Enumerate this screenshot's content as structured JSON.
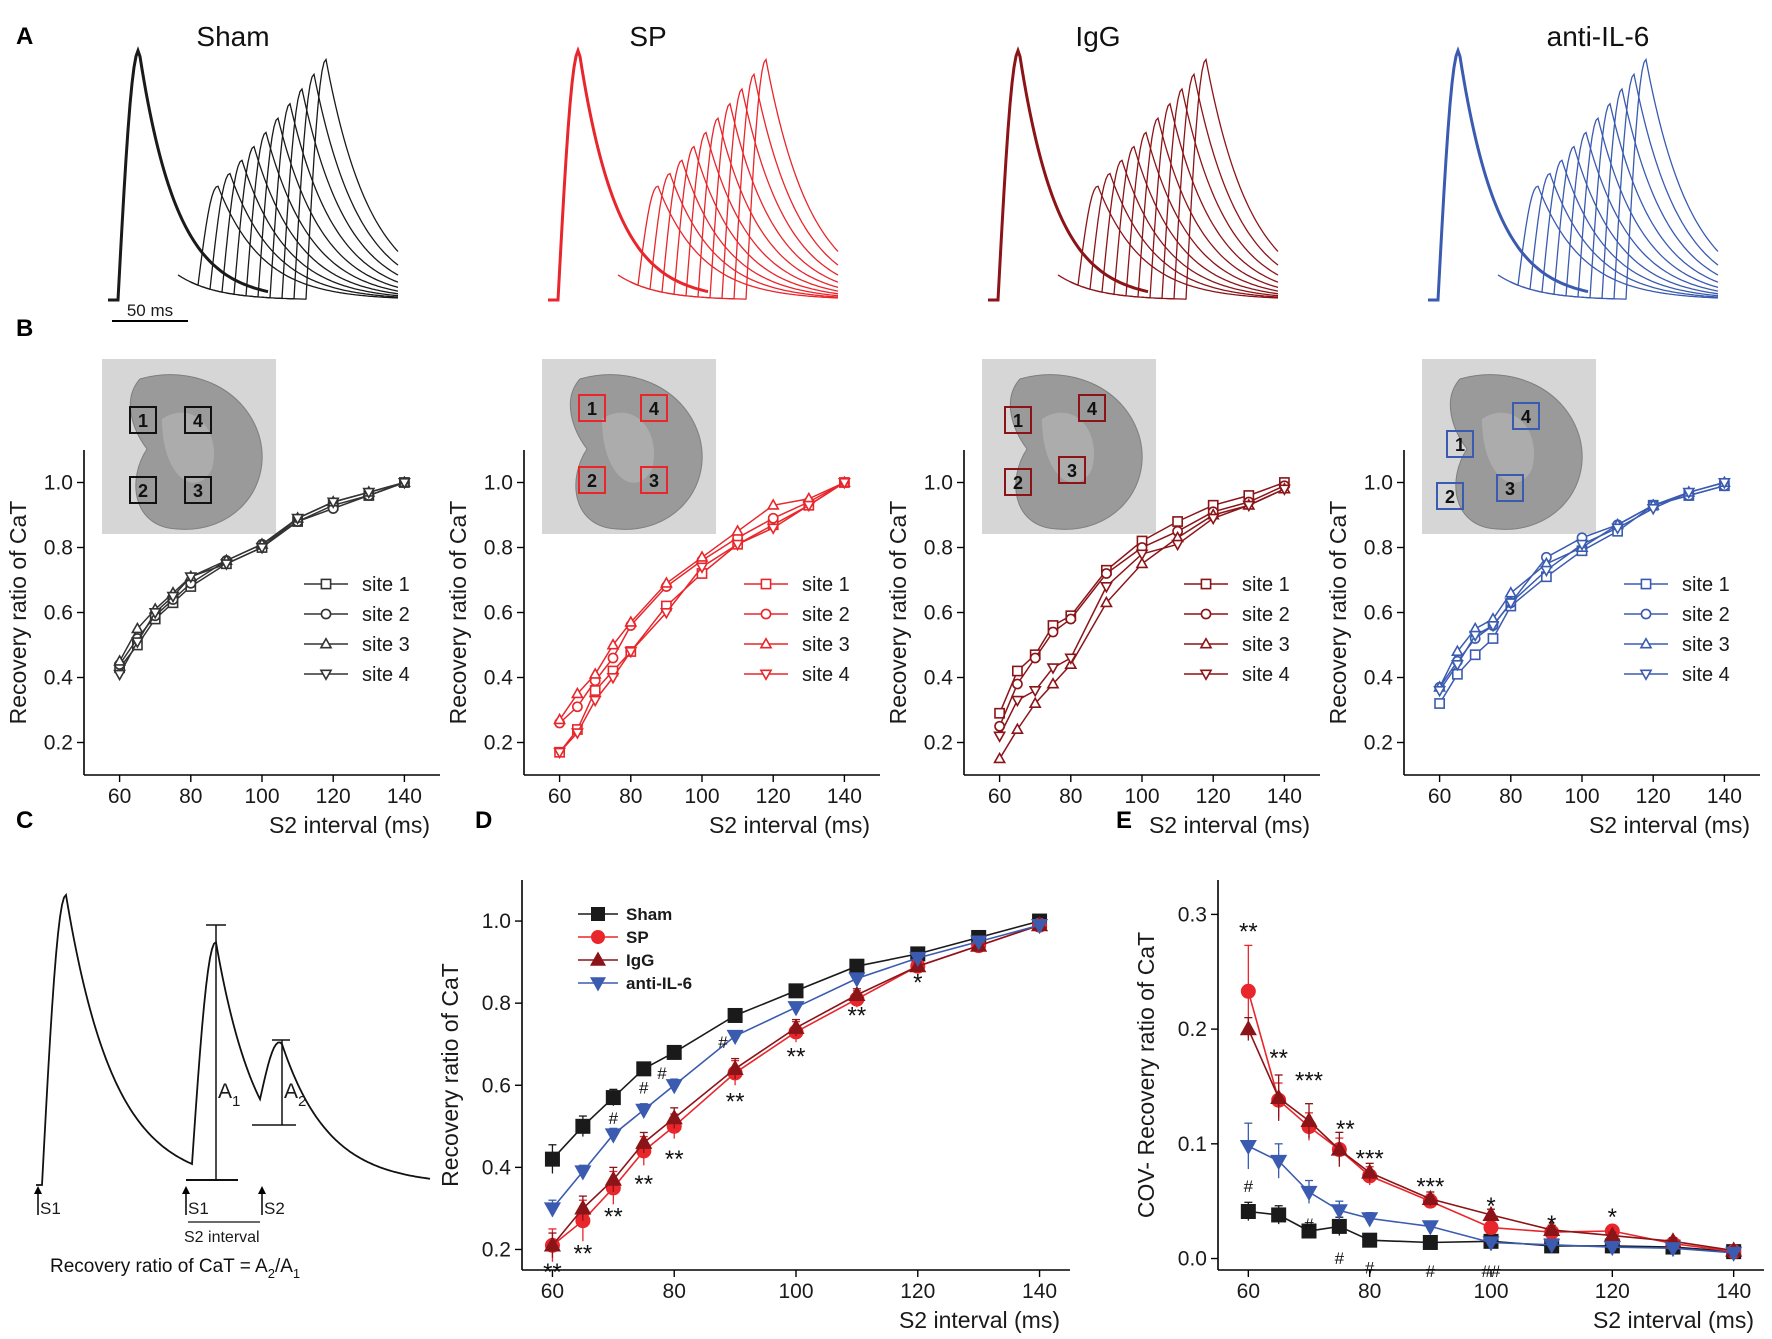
{
  "figure": {
    "panel_letters": [
      "A",
      "B",
      "C",
      "D",
      "E"
    ],
    "colors": {
      "Sham": "#1a1a1a",
      "SP": "#e8262b",
      "IgG": "#8b1418",
      "anti-IL-6": "#3a5bb0"
    },
    "marker_map": [
      "square",
      "circle",
      "triangle-up",
      "triangle-down"
    ]
  },
  "panel_a": {
    "groups": [
      "Sham",
      "SP",
      "IgG",
      "anti-IL-6"
    ],
    "scale_bar": "50 ms"
  },
  "panel_b": {
    "groups": [
      "Sham",
      "SP",
      "IgG",
      "anti-IL-6"
    ],
    "site_legend": [
      "site 1",
      "site 2",
      "site 3",
      "site 4"
    ],
    "roi_labels": [
      "1",
      "2",
      "3",
      "4"
    ]
  },
  "panel_c": {
    "labels": {
      "s1": "S1",
      "s2": "S2",
      "a1": "A",
      "a1_sub": "1",
      "a2": "A",
      "a2_sub": "2",
      "interval": "S2 interval"
    },
    "formula": "Recovery ratio of CaT = A",
    "formula_sub2": "2",
    "formula_mid": "/A",
    "formula_sub1": "1"
  },
  "chart_data": [
    {
      "panel": "B",
      "group": "Sham",
      "type": "line",
      "title": "Sham",
      "xlabel": "S2 interval (ms)",
      "ylabel": "Recovery ratio of CaT",
      "x": [
        60,
        65,
        70,
        75,
        80,
        90,
        100,
        110,
        120,
        130,
        140
      ],
      "xlim": [
        50,
        150
      ],
      "ylim": [
        0.1,
        1.1
      ],
      "xticks": [
        "60",
        "80",
        "100",
        "120",
        "140"
      ],
      "yticks": [
        "0.2",
        "0.4",
        "0.6",
        "0.8",
        "1.0"
      ],
      "series": [
        {
          "name": "site 1",
          "values": [
            0.43,
            0.5,
            0.58,
            0.63,
            0.68,
            0.75,
            0.8,
            0.88,
            0.93,
            0.96,
            1.0
          ]
        },
        {
          "name": "site 2",
          "values": [
            0.44,
            0.52,
            0.59,
            0.64,
            0.69,
            0.76,
            0.81,
            0.88,
            0.92,
            0.96,
            1.0
          ]
        },
        {
          "name": "site 3",
          "values": [
            0.45,
            0.55,
            0.61,
            0.66,
            0.71,
            0.76,
            0.81,
            0.89,
            0.94,
            0.97,
            1.0
          ]
        },
        {
          "name": "site 4",
          "values": [
            0.41,
            0.51,
            0.6,
            0.65,
            0.71,
            0.75,
            0.8,
            0.89,
            0.94,
            0.97,
            1.0
          ]
        }
      ]
    },
    {
      "panel": "B",
      "group": "SP",
      "type": "line",
      "title": "SP",
      "xlabel": "S2 interval (ms)",
      "ylabel": "Recovery ratio of CaT",
      "x": [
        60,
        65,
        70,
        75,
        80,
        90,
        100,
        110,
        120,
        130,
        140
      ],
      "xlim": [
        50,
        150
      ],
      "ylim": [
        0.1,
        1.1
      ],
      "xticks": [
        "60",
        "80",
        "100",
        "120",
        "140"
      ],
      "yticks": [
        "0.2",
        "0.4",
        "0.6",
        "0.8",
        "1.0"
      ],
      "series": [
        {
          "name": "site 1",
          "values": [
            0.17,
            0.24,
            0.36,
            0.42,
            0.48,
            0.62,
            0.72,
            0.81,
            0.87,
            0.93,
            1.0
          ]
        },
        {
          "name": "site 2",
          "values": [
            0.26,
            0.31,
            0.39,
            0.46,
            0.56,
            0.68,
            0.76,
            0.83,
            0.89,
            0.94,
            1.0
          ]
        },
        {
          "name": "site 3",
          "values": [
            0.27,
            0.35,
            0.41,
            0.5,
            0.57,
            0.69,
            0.77,
            0.85,
            0.93,
            0.95,
            1.0
          ]
        },
        {
          "name": "site 4",
          "values": [
            0.17,
            0.23,
            0.33,
            0.4,
            0.48,
            0.6,
            0.74,
            0.81,
            0.86,
            0.93,
            1.0
          ]
        }
      ]
    },
    {
      "panel": "B",
      "group": "IgG",
      "type": "line",
      "title": "IgG",
      "xlabel": "S2 interval (ms)",
      "ylabel": "Recovery ratio of CaT",
      "x": [
        60,
        65,
        70,
        75,
        80,
        90,
        100,
        110,
        120,
        130,
        140
      ],
      "xlim": [
        50,
        150
      ],
      "ylim": [
        0.1,
        1.1
      ],
      "xticks": [
        "60",
        "80",
        "100",
        "120",
        "140"
      ],
      "yticks": [
        "0.2",
        "0.4",
        "0.6",
        "0.8",
        "1.0"
      ],
      "series": [
        {
          "name": "site 1",
          "values": [
            0.29,
            0.42,
            0.47,
            0.56,
            0.59,
            0.73,
            0.82,
            0.88,
            0.93,
            0.96,
            1.0
          ]
        },
        {
          "name": "site 2",
          "values": [
            0.25,
            0.38,
            0.46,
            0.54,
            0.58,
            0.72,
            0.8,
            0.85,
            0.91,
            0.94,
            0.99
          ]
        },
        {
          "name": "site 3",
          "values": [
            0.15,
            0.24,
            0.32,
            0.38,
            0.44,
            0.63,
            0.75,
            0.83,
            0.9,
            0.93,
            0.98
          ]
        },
        {
          "name": "site 4",
          "values": [
            0.22,
            0.33,
            0.36,
            0.43,
            0.46,
            0.68,
            0.78,
            0.81,
            0.89,
            0.93,
            0.98
          ]
        }
      ]
    },
    {
      "panel": "B",
      "group": "anti-IL-6",
      "type": "line",
      "title": "anti-IL-6",
      "xlabel": "S2 interval (ms)",
      "ylabel": "Recovery ratio of CaT",
      "x": [
        60,
        65,
        70,
        75,
        80,
        90,
        100,
        110,
        120,
        130,
        140
      ],
      "xlim": [
        50,
        150
      ],
      "ylim": [
        0.1,
        1.1
      ],
      "xticks": [
        "60",
        "80",
        "100",
        "120",
        "140"
      ],
      "yticks": [
        "0.2",
        "0.4",
        "0.6",
        "0.8",
        "1.0"
      ],
      "series": [
        {
          "name": "site 1",
          "values": [
            0.32,
            0.41,
            0.47,
            0.52,
            0.62,
            0.71,
            0.79,
            0.85,
            0.93,
            0.96,
            0.99
          ]
        },
        {
          "name": "site 2",
          "values": [
            0.37,
            0.45,
            0.52,
            0.56,
            0.63,
            0.77,
            0.83,
            0.87,
            0.93,
            0.96,
            0.99
          ]
        },
        {
          "name": "site 3",
          "values": [
            0.37,
            0.48,
            0.55,
            0.58,
            0.66,
            0.75,
            0.8,
            0.87,
            0.93,
            0.97,
            1.0
          ]
        },
        {
          "name": "site 4",
          "values": [
            0.36,
            0.44,
            0.53,
            0.56,
            0.63,
            0.73,
            0.81,
            0.86,
            0.92,
            0.97,
            1.0
          ]
        }
      ]
    },
    {
      "panel": "D",
      "type": "line",
      "xlabel": "S2 interval (ms)",
      "ylabel": "Recovery ratio of CaT",
      "x": [
        60,
        65,
        70,
        75,
        80,
        90,
        100,
        110,
        120,
        130,
        140
      ],
      "xlim": [
        55,
        145
      ],
      "ylim": [
        0.15,
        1.1
      ],
      "xticks": [
        "60",
        "80",
        "100",
        "120",
        "140"
      ],
      "yticks": [
        "0.2",
        "0.4",
        "0.6",
        "0.8",
        "1.0"
      ],
      "series": [
        {
          "name": "Sham",
          "values": [
            0.42,
            0.5,
            0.57,
            0.64,
            0.68,
            0.77,
            0.83,
            0.89,
            0.92,
            0.96,
            1.0
          ],
          "err": [
            0.035,
            0.025,
            0.02,
            0.015,
            0.015,
            0.01,
            0.01,
            0.01,
            0.01,
            0.01,
            0.01
          ]
        },
        {
          "name": "SP",
          "values": [
            0.21,
            0.27,
            0.35,
            0.44,
            0.5,
            0.63,
            0.73,
            0.81,
            0.89,
            0.94,
            0.99
          ],
          "err": [
            0.04,
            0.05,
            0.04,
            0.035,
            0.03,
            0.03,
            0.025,
            0.02,
            0.015,
            0.01,
            0.01
          ]
        },
        {
          "name": "IgG",
          "values": [
            0.21,
            0.3,
            0.37,
            0.46,
            0.52,
            0.64,
            0.74,
            0.82,
            0.89,
            0.94,
            0.99
          ],
          "err": [
            0.03,
            0.03,
            0.03,
            0.025,
            0.025,
            0.025,
            0.02,
            0.015,
            0.01,
            0.01,
            0.01
          ]
        },
        {
          "name": "anti-IL-6",
          "values": [
            0.3,
            0.39,
            0.48,
            0.54,
            0.6,
            0.72,
            0.79,
            0.86,
            0.91,
            0.95,
            0.99
          ],
          "err": [
            0.02,
            0.015,
            0.015,
            0.015,
            0.015,
            0.01,
            0.01,
            0.01,
            0.01,
            0.01,
            0.01
          ]
        }
      ],
      "annotations": [
        {
          "text": "**",
          "x": 60,
          "y": 0.145
        },
        {
          "text": "**",
          "x": 65,
          "y": 0.19
        },
        {
          "text": "**",
          "x": 70,
          "y": 0.28
        },
        {
          "text": "**",
          "x": 75,
          "y": 0.36
        },
        {
          "text": "**",
          "x": 80,
          "y": 0.42
        },
        {
          "text": "**",
          "x": 90,
          "y": 0.56
        },
        {
          "text": "**",
          "x": 100,
          "y": 0.67
        },
        {
          "text": "**",
          "x": 110,
          "y": 0.77
        },
        {
          "text": "*",
          "x": 120,
          "y": 0.85
        },
        {
          "text": "#",
          "x": 70,
          "y": 0.525
        },
        {
          "text": "#",
          "x": 75,
          "y": 0.6
        },
        {
          "text": "#",
          "x": 78,
          "y": 0.635
        },
        {
          "text": "#",
          "x": 88,
          "y": 0.71
        }
      ]
    },
    {
      "panel": "E",
      "type": "line",
      "xlabel": "S2 interval (ms)",
      "ylabel": "COV- Recovery ratio of CaT",
      "x": [
        60,
        65,
        70,
        75,
        80,
        90,
        100,
        110,
        120,
        130,
        140
      ],
      "xlim": [
        55,
        145
      ],
      "ylim": [
        -0.01,
        0.33
      ],
      "xticks": [
        "60",
        "80",
        "100",
        "120",
        "140"
      ],
      "yticks": [
        "0.0",
        "0.1",
        "0.2",
        "0.3"
      ],
      "series": [
        {
          "name": "Sham",
          "values": [
            0.041,
            0.038,
            0.024,
            0.028,
            0.016,
            0.014,
            0.015,
            0.011,
            0.011,
            0.01,
            0.006
          ],
          "err": [
            0.008,
            0.008,
            0.005,
            0.008,
            0.003,
            0.003,
            0.003,
            0.003,
            0.003,
            0.003,
            0.002
          ]
        },
        {
          "name": "SP",
          "values": [
            0.233,
            0.138,
            0.115,
            0.095,
            0.072,
            0.05,
            0.027,
            0.023,
            0.024,
            0.013,
            0.006
          ],
          "err": [
            0.04,
            0.015,
            0.012,
            0.01,
            0.008,
            0.006,
            0.005,
            0.004,
            0.003,
            0.003,
            0.002
          ]
        },
        {
          "name": "IgG",
          "values": [
            0.2,
            0.14,
            0.12,
            0.095,
            0.075,
            0.052,
            0.038,
            0.025,
            0.02,
            0.015,
            0.007
          ],
          "err": [
            0.01,
            0.02,
            0.015,
            0.015,
            0.008,
            0.006,
            0.005,
            0.004,
            0.003,
            0.003,
            0.002
          ]
        },
        {
          "name": "anti-IL-6",
          "values": [
            0.098,
            0.085,
            0.058,
            0.042,
            0.035,
            0.028,
            0.014,
            0.012,
            0.01,
            0.009,
            0.005
          ],
          "err": [
            0.02,
            0.015,
            0.01,
            0.008,
            0.005,
            0.004,
            0.003,
            0.003,
            0.002,
            0.002,
            0.002
          ]
        }
      ],
      "annotations": [
        {
          "text": "**",
          "x": 60,
          "y": 0.285
        },
        {
          "text": "**",
          "x": 65,
          "y": 0.175
        },
        {
          "text": "***",
          "x": 70,
          "y": 0.155
        },
        {
          "text": "**",
          "x": 76,
          "y": 0.113
        },
        {
          "text": "***",
          "x": 80,
          "y": 0.087
        },
        {
          "text": "***",
          "x": 90,
          "y": 0.063
        },
        {
          "text": "*",
          "x": 100,
          "y": 0.046
        },
        {
          "text": "*",
          "x": 110,
          "y": 0.03
        },
        {
          "text": "*",
          "x": 120,
          "y": 0.036
        },
        {
          "text": "#",
          "x": 60,
          "y": 0.065
        },
        {
          "text": "#",
          "x": 70,
          "y": 0.032
        },
        {
          "text": "#",
          "x": 75,
          "y": 0.002
        },
        {
          "text": "#",
          "x": 80,
          "y": -0.006
        },
        {
          "text": "#",
          "x": 90,
          "y": -0.009
        },
        {
          "text": "##",
          "x": 100,
          "y": -0.009
        }
      ]
    }
  ]
}
